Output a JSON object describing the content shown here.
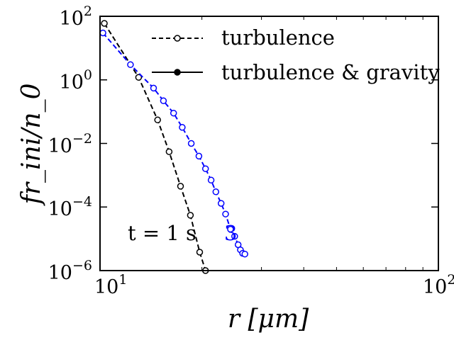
{
  "chart_data": {
    "type": "line",
    "title": "",
    "xlabel": "r [μm]",
    "ylabel": "fr_ini/n_0",
    "xscale": "log",
    "yscale": "log",
    "xlim": [
      10,
      100
    ],
    "ylim": [
      1e-06,
      100
    ],
    "x_tick_labels": [
      {
        "value": 10,
        "base": "10",
        "exp": "1"
      },
      {
        "value": 100,
        "base": "10",
        "exp": "2"
      }
    ],
    "y_tick_labels": [
      {
        "value": 100,
        "base": "10",
        "exp": "2"
      },
      {
        "value": 1,
        "base": "10",
        "exp": "0"
      },
      {
        "value": 0.01,
        "base": "10",
        "exp": "−2"
      },
      {
        "value": 0.0001,
        "base": "10",
        "exp": "−4"
      },
      {
        "value": 1e-06,
        "base": "10",
        "exp": "−6"
      }
    ],
    "grid": false,
    "legend": {
      "placement": "top-right",
      "entries": [
        {
          "label": "turbulence",
          "style": "dashed-open-circle",
          "color": "#000000"
        },
        {
          "label": "turbulence & gravity",
          "style": "solid-filled-circle",
          "color": "#000000"
        }
      ]
    },
    "annotations": [
      {
        "text": "t = 1 s",
        "color": "#000000"
      },
      {
        "text": "3",
        "color": "#0000ff"
      }
    ],
    "series": [
      {
        "color": "#000000",
        "style": "dashed-open-circle",
        "x": [
          10.3,
          13.0,
          14.8,
          16.0,
          17.3,
          18.5,
          19.7,
          20.5
        ],
        "y": [
          60,
          1.2,
          0.055,
          0.0055,
          0.00045,
          5.5e-05,
          3.8e-06,
          1e-06
        ]
      },
      {
        "color": "#0000ff",
        "style": "dashed-open-circle",
        "x": [
          10.2,
          12.3,
          14.4,
          15.4,
          16.5,
          17.5,
          18.6,
          19.6,
          20.5,
          21.3,
          22.0,
          22.8,
          23.5,
          24.3,
          25.0,
          25.6,
          26.0,
          26.4,
          26.8
        ],
        "y": [
          30,
          3.0,
          0.55,
          0.22,
          0.09,
          0.032,
          0.01,
          0.004,
          0.0016,
          0.0007,
          0.0003,
          0.00013,
          6e-05,
          2e-05,
          1.2e-05,
          6.5e-06,
          4.5e-06,
          3.5e-06,
          3.3e-06
        ]
      }
    ]
  }
}
